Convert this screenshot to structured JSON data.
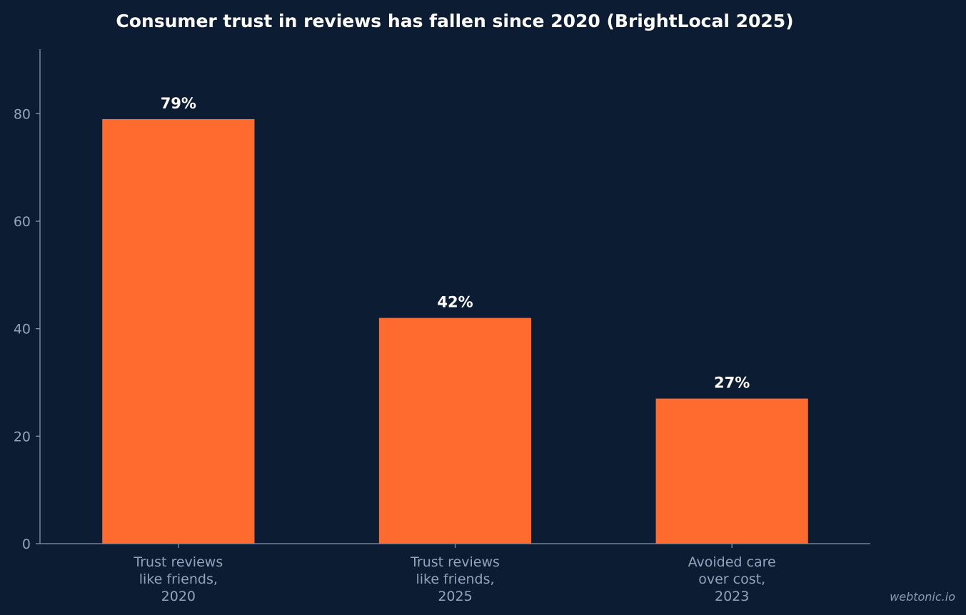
{
  "chart_data": {
    "type": "bar",
    "title": "Consumer trust in reviews has fallen since 2020 (BrightLocal 2025)",
    "categories": [
      [
        "Trust reviews",
        "like friends,",
        "2020"
      ],
      [
        "Trust reviews",
        "like friends,",
        "2025"
      ],
      [
        "Avoided care",
        "over cost,",
        "2023"
      ]
    ],
    "values": [
      79,
      42,
      27
    ],
    "data_labels": [
      "79%",
      "42%",
      "27%"
    ],
    "xlabel": "",
    "ylabel": "",
    "ylim": [
      0,
      92
    ],
    "yticks": [
      0,
      20,
      40,
      60,
      80
    ],
    "grid": false,
    "legend": "none",
    "colors": {
      "background": "#0c1c33",
      "bar": "#ff6b2e",
      "axis": "#8494ad",
      "tick_text": "#93a3bc",
      "title": "#ffffff",
      "value_label": "#ffffff"
    }
  },
  "watermark": "webtonic.io"
}
